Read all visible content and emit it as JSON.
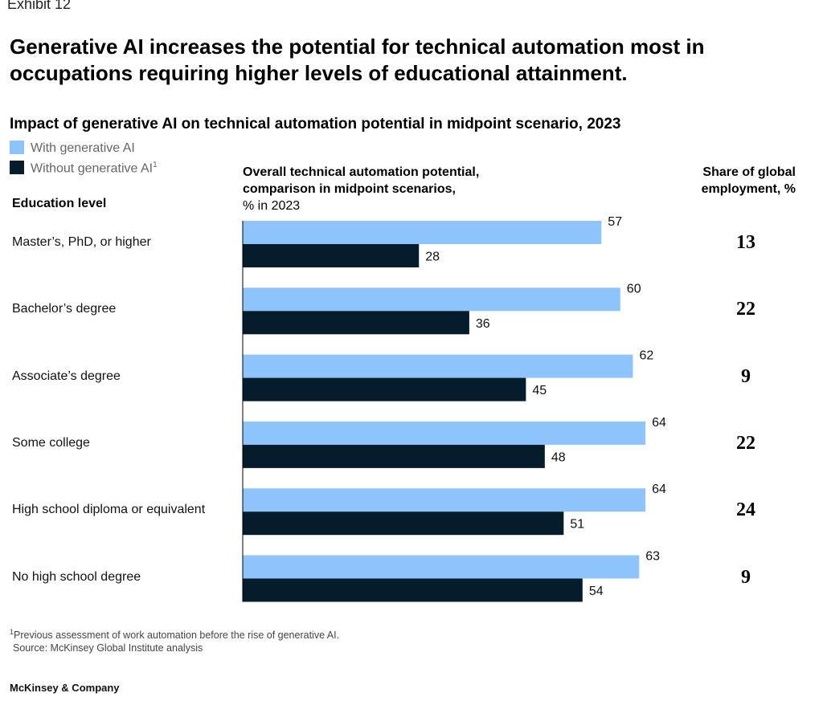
{
  "exhibit_label": "Exhibit 12",
  "title": "Generative AI increases the potential for technical automation most in occupations requiring higher levels of educational attainment.",
  "subtitle": "Impact of generative AI on technical automation potential in midpoint scenario, 2023",
  "legend": {
    "with_label": "With generative AI",
    "without_label": "Without generative AI",
    "without_sup": "1"
  },
  "headers": {
    "education": "Education level",
    "bars_line1": "Overall technical automation potential,",
    "bars_line2": "comparison in midpoint scenarios,",
    "bars_line3": "% in 2023",
    "share": "Share of global employment, %"
  },
  "colors": {
    "with_gen_ai": "#8fc3fb",
    "without_gen_ai": "#051c2c"
  },
  "chart_data": {
    "type": "bar",
    "orientation": "horizontal",
    "categories": [
      "Master’s, PhD, or higher",
      "Bachelor’s degree",
      "Associate’s degree",
      "Some college",
      "High school diploma or equivalent",
      "No high school degree"
    ],
    "series": [
      {
        "name": "With generative AI",
        "values": [
          57,
          60,
          62,
          64,
          64,
          63
        ]
      },
      {
        "name": "Without generative AI",
        "values": [
          28,
          36,
          45,
          48,
          51,
          54
        ]
      }
    ],
    "share_of_global_employment": [
      13,
      22,
      9,
      22,
      24,
      9
    ],
    "xlim": [
      0,
      100
    ]
  },
  "footnote": {
    "marker": "1",
    "text": "Previous assessment of work automation before the rise of generative AI.",
    "source": "Source: McKinsey Global Institute analysis"
  },
  "brand": "McKinsey & Company"
}
